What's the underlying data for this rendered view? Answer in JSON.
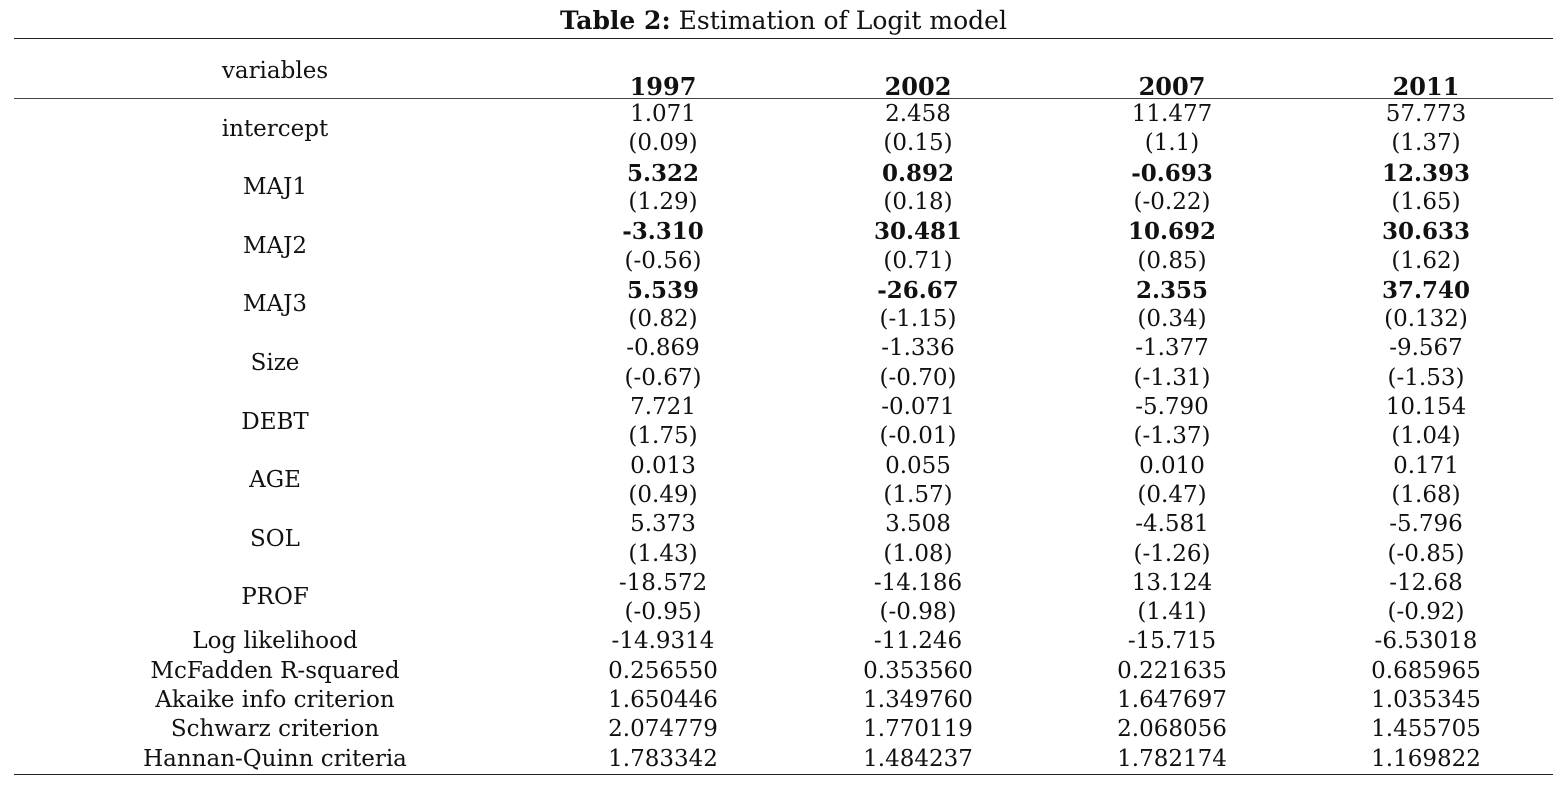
{
  "caption": {
    "label": "Table 2:",
    "text": "Estimation of Logit model"
  },
  "header": {
    "variables_label": "variables",
    "years": [
      "1997",
      "2002",
      "2007",
      "2011"
    ]
  },
  "variable_rows": [
    {
      "name": "intercept",
      "bold_coef": false,
      "coef": [
        "1.071",
        "2.458",
        "11.477",
        "57.773"
      ],
      "stat": [
        "(0.09)",
        "(0.15)",
        "(1.1)",
        "(1.37)"
      ]
    },
    {
      "name": "MAJ1",
      "bold_coef": true,
      "coef": [
        "5.322",
        "0.892",
        "-0.693",
        "12.393"
      ],
      "stat": [
        "(1.29)",
        "(0.18)",
        "(-0.22)",
        "(1.65)"
      ]
    },
    {
      "name": "MAJ2",
      "bold_coef": true,
      "coef": [
        "-3.310",
        "30.481",
        "10.692",
        "30.633"
      ],
      "stat": [
        "(-0.56)",
        "(0.71)",
        "(0.85)",
        "(1.62)"
      ]
    },
    {
      "name": "MAJ3",
      "bold_coef": true,
      "coef": [
        "5.539",
        "-26.67",
        "2.355",
        "37.740"
      ],
      "stat": [
        "(0.82)",
        "(-1.15)",
        "(0.34)",
        "(0.132)"
      ]
    },
    {
      "name": "Size",
      "bold_coef": false,
      "coef": [
        "-0.869",
        "-1.336",
        "-1.377",
        "-9.567"
      ],
      "stat": [
        "(-0.67)",
        "(-0.70)",
        "(-1.31)",
        "(-1.53)"
      ]
    },
    {
      "name": "DEBT",
      "bold_coef": false,
      "coef": [
        "7.721",
        "-0.071",
        "-5.790",
        "10.154"
      ],
      "stat": [
        "(1.75)",
        "(-0.01)",
        "(-1.37)",
        "(1.04)"
      ]
    },
    {
      "name": "AGE",
      "bold_coef": false,
      "coef": [
        "0.013",
        "0.055",
        "0.010",
        "0.171"
      ],
      "stat": [
        "(0.49)",
        "(1.57)",
        "(0.47)",
        "(1.68)"
      ]
    },
    {
      "name": "SOL",
      "bold_coef": false,
      "coef": [
        "5.373",
        "3.508",
        "-4.581",
        "-5.796"
      ],
      "stat": [
        "(1.43)",
        "(1.08)",
        "(-1.26)",
        "(-0.85)"
      ]
    },
    {
      "name": "PROF",
      "bold_coef": false,
      "coef": [
        "-18.572",
        "-14.186",
        "13.124",
        "-12.68"
      ],
      "stat": [
        "(-0.95)",
        "(-0.98)",
        "(1.41)",
        "(-0.92)"
      ]
    }
  ],
  "stat_rows": [
    {
      "name": "Log likelihood",
      "values": [
        "-14.9314",
        "-11.246",
        "-15.715",
        "-6.53018"
      ]
    },
    {
      "name": "McFadden R-squared",
      "values": [
        "0.256550",
        "0.353560",
        "0.221635",
        "0.685965"
      ]
    },
    {
      "name": "Akaike info criterion",
      "values": [
        "1.650446",
        "1.349760",
        "1.647697",
        "1.035345"
      ]
    },
    {
      "name": "Schwarz criterion",
      "values": [
        "2.074779",
        "1.770119",
        "2.068056",
        "1.455705"
      ]
    },
    {
      "name": "Hannan-Quinn criteria",
      "values": [
        "1.783342",
        "1.484237",
        "1.782174",
        "1.169822"
      ]
    }
  ]
}
